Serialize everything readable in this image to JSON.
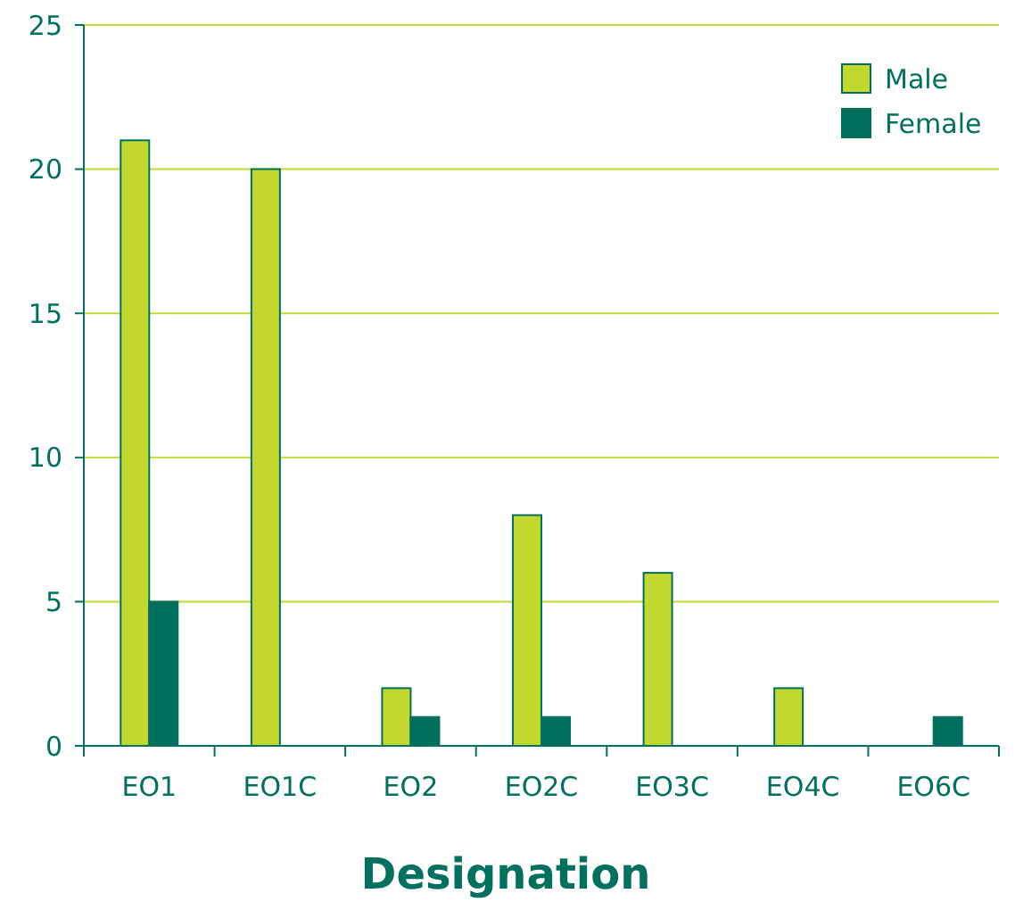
{
  "chart_data": {
    "type": "bar",
    "xlabel": "Designation",
    "categories": [
      "EO1",
      "EO1C",
      "EO2",
      "EO2C",
      "EO3C",
      "EO4C",
      "EO6C"
    ],
    "series": [
      {
        "name": "Male",
        "color": "#c3d82f",
        "values": [
          21,
          20,
          2,
          8,
          6,
          2,
          0
        ]
      },
      {
        "name": "Female",
        "color": "#006e5c",
        "values": [
          5,
          0,
          1,
          1,
          0,
          0,
          1
        ]
      }
    ],
    "ylim": [
      0,
      25
    ],
    "yticks": [
      0,
      5,
      10,
      15,
      20,
      25
    ],
    "grid": "y",
    "legend": "top right"
  }
}
